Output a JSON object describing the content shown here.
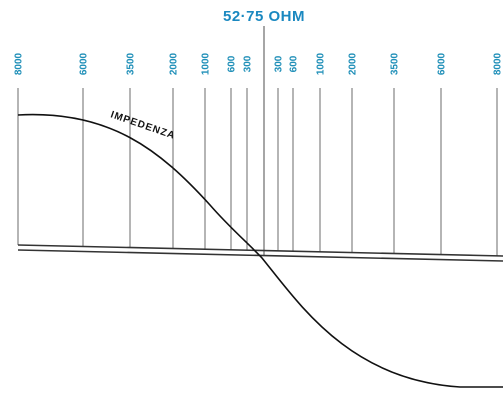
{
  "title": "52·75 OHM",
  "curve_label": "IMPEDENZA",
  "tick_labels": [
    "8000",
    "6000",
    "3500",
    "2000",
    "1000",
    "600",
    "300",
    "300",
    "600",
    "1000",
    "2000",
    "3500",
    "6000",
    "8000"
  ],
  "colors": {
    "accent": "#1a88c0",
    "line": "#6b6b6b",
    "curve": "#111111",
    "background": "#ffffff"
  }
}
